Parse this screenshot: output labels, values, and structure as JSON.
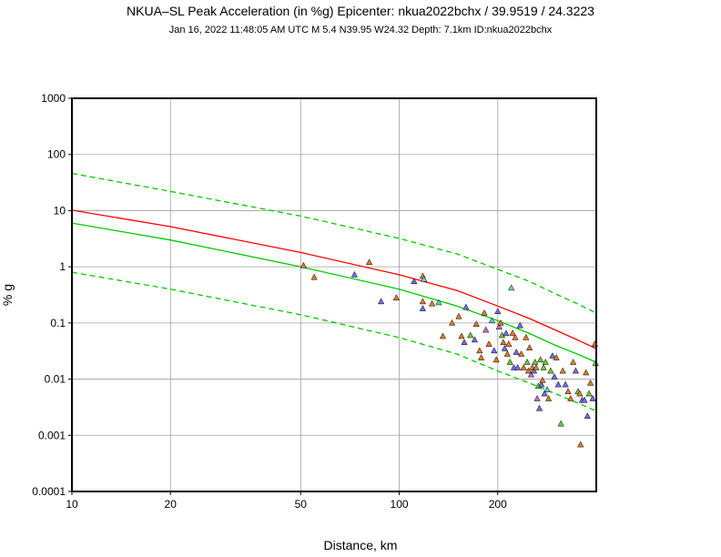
{
  "chart_data": {
    "type": "scatter",
    "title": "NKUA–SL Peak Acceleration (in %g) Epicenter: nkua2022bchx / 39.9519 / 24.3223",
    "subtitle": "Jan 16, 2022 11:48:05 AM UTC   M 5.4   N39.95 W24.32   Depth: 7.1km   ID:nkua2022bchx",
    "xlabel": "Distance, km",
    "ylabel": "% g",
    "xscale": "log",
    "yscale": "log",
    "xlim": [
      10,
      400
    ],
    "ylim": [
      0.0001,
      1000
    ],
    "grid": true,
    "x_tick_labels": [
      {
        "value": 10,
        "label": "10"
      },
      {
        "value": 20,
        "label": "20"
      },
      {
        "value": 50,
        "label": "50"
      },
      {
        "value": 100,
        "label": "100"
      },
      {
        "value": 200,
        "label": "200"
      }
    ],
    "y_tick_labels": [
      {
        "value": 1000,
        "label": "1000"
      },
      {
        "value": 100,
        "label": "100"
      },
      {
        "value": 10,
        "label": "10"
      },
      {
        "value": 1,
        "label": "1"
      },
      {
        "value": 0.1,
        "label": "0.1"
      },
      {
        "value": 0.01,
        "label": "0.01"
      },
      {
        "value": 0.001,
        "label": "0.001"
      },
      {
        "value": 0.0001,
        "label": "0.0001"
      }
    ],
    "series": [
      {
        "name": "red-curve",
        "style": "solid",
        "color": "#ff0000",
        "x": [
          10,
          20,
          50,
          100,
          150,
          200,
          250,
          300,
          350,
          400
        ],
        "y": [
          10.2,
          5.2,
          1.8,
          0.72,
          0.38,
          0.2,
          0.12,
          0.075,
          0.05,
          0.035
        ]
      },
      {
        "name": "green-median",
        "style": "solid",
        "color": "#00cc00",
        "x": [
          10,
          20,
          50,
          100,
          150,
          200,
          250,
          300,
          350,
          400
        ],
        "y": [
          6.0,
          3.0,
          1.0,
          0.4,
          0.2,
          0.11,
          0.065,
          0.04,
          0.028,
          0.02
        ]
      },
      {
        "name": "green-upper",
        "style": "dashed",
        "color": "#00cc00",
        "x": [
          10,
          20,
          50,
          100,
          150,
          200,
          250,
          300,
          350,
          400
        ],
        "y": [
          46,
          22,
          8,
          3.2,
          1.7,
          0.9,
          0.55,
          0.33,
          0.22,
          0.15
        ]
      },
      {
        "name": "green-lower",
        "style": "dashed",
        "color": "#00cc00",
        "x": [
          10,
          20,
          50,
          100,
          150,
          200,
          250,
          300,
          350,
          400
        ],
        "y": [
          0.8,
          0.4,
          0.14,
          0.055,
          0.028,
          0.014,
          0.0085,
          0.0055,
          0.0038,
          0.0027
        ]
      }
    ],
    "points": [
      {
        "x": 51,
        "y": 1.05,
        "color": "#e07a2a"
      },
      {
        "x": 55,
        "y": 0.65,
        "color": "#e07a2a"
      },
      {
        "x": 73,
        "y": 0.72,
        "color": "#6e6ee6"
      },
      {
        "x": 81,
        "y": 1.2,
        "color": "#e07a2a"
      },
      {
        "x": 88,
        "y": 0.24,
        "color": "#6e6ee6"
      },
      {
        "x": 98,
        "y": 0.28,
        "color": "#e07a2a"
      },
      {
        "x": 111,
        "y": 0.55,
        "color": "#6e6ee6"
      },
      {
        "x": 118,
        "y": 0.68,
        "color": "#e07a2a"
      },
      {
        "x": 119,
        "y": 0.6,
        "color": "#66cccc"
      },
      {
        "x": 118,
        "y": 0.24,
        "color": "#e07a2a"
      },
      {
        "x": 118,
        "y": 0.18,
        "color": "#6e6ee6"
      },
      {
        "x": 126,
        "y": 0.22,
        "color": "#e07a2a"
      },
      {
        "x": 132,
        "y": 0.23,
        "color": "#66cccc"
      },
      {
        "x": 145,
        "y": 0.1,
        "color": "#e07a2a"
      },
      {
        "x": 136,
        "y": 0.058,
        "color": "#e07a2a"
      },
      {
        "x": 152,
        "y": 0.13,
        "color": "#e07a2a"
      },
      {
        "x": 155,
        "y": 0.058,
        "color": "#e07a2a"
      },
      {
        "x": 158,
        "y": 0.045,
        "color": "#6e6ee6"
      },
      {
        "x": 160,
        "y": 0.19,
        "color": "#6e6ee6"
      },
      {
        "x": 165,
        "y": 0.06,
        "color": "#66cc33"
      },
      {
        "x": 170,
        "y": 0.05,
        "color": "#6e6ee6"
      },
      {
        "x": 172,
        "y": 0.095,
        "color": "#e07a2a"
      },
      {
        "x": 176,
        "y": 0.032,
        "color": "#e07a2a"
      },
      {
        "x": 178,
        "y": 0.024,
        "color": "#e07a2a"
      },
      {
        "x": 182,
        "y": 0.15,
        "color": "#e07a2a"
      },
      {
        "x": 184,
        "y": 0.075,
        "color": "#cc66cc"
      },
      {
        "x": 188,
        "y": 0.042,
        "color": "#e07a2a"
      },
      {
        "x": 192,
        "y": 0.11,
        "color": "#66cccc"
      },
      {
        "x": 195,
        "y": 0.032,
        "color": "#6e6ee6"
      },
      {
        "x": 198,
        "y": 0.022,
        "color": "#e07a2a"
      },
      {
        "x": 200,
        "y": 0.16,
        "color": "#6e6ee6"
      },
      {
        "x": 202,
        "y": 0.085,
        "color": "#cc66cc"
      },
      {
        "x": 204,
        "y": 0.1,
        "color": "#e07a2a"
      },
      {
        "x": 206,
        "y": 0.06,
        "color": "#66cc33"
      },
      {
        "x": 208,
        "y": 0.045,
        "color": "#e07a2a"
      },
      {
        "x": 210,
        "y": 0.035,
        "color": "#6e6ee6"
      },
      {
        "x": 212,
        "y": 0.065,
        "color": "#6e6ee6"
      },
      {
        "x": 214,
        "y": 0.028,
        "color": "#e07a2a"
      },
      {
        "x": 216,
        "y": 0.042,
        "color": "#e07a2a"
      },
      {
        "x": 218,
        "y": 0.02,
        "color": "#66cc33"
      },
      {
        "x": 220,
        "y": 0.42,
        "color": "#66cccc"
      },
      {
        "x": 222,
        "y": 0.066,
        "color": "#e07a2a"
      },
      {
        "x": 224,
        "y": 0.016,
        "color": "#6e6ee6"
      },
      {
        "x": 226,
        "y": 0.055,
        "color": "#e07a2a"
      },
      {
        "x": 228,
        "y": 0.03,
        "color": "#6e6ee6"
      },
      {
        "x": 230,
        "y": 0.016,
        "color": "#6e6ee6"
      },
      {
        "x": 234,
        "y": 0.09,
        "color": "#6e6ee6"
      },
      {
        "x": 236,
        "y": 0.028,
        "color": "#e07a2a"
      },
      {
        "x": 240,
        "y": 0.016,
        "color": "#e07a2a"
      },
      {
        "x": 244,
        "y": 0.055,
        "color": "#e07a2a"
      },
      {
        "x": 246,
        "y": 0.02,
        "color": "#66cc33"
      },
      {
        "x": 248,
        "y": 0.014,
        "color": "#e07a2a"
      },
      {
        "x": 250,
        "y": 0.036,
        "color": "#e07a2a"
      },
      {
        "x": 253,
        "y": 0.012,
        "color": "#cc66cc"
      },
      {
        "x": 255,
        "y": 0.016,
        "color": "#e07a2a"
      },
      {
        "x": 258,
        "y": 0.014,
        "color": "#6e6ee6"
      },
      {
        "x": 260,
        "y": 0.02,
        "color": "#66cc33"
      },
      {
        "x": 262,
        "y": 0.016,
        "color": "#e07a2a"
      },
      {
        "x": 264,
        "y": 0.0045,
        "color": "#cc66cc"
      },
      {
        "x": 266,
        "y": 0.0075,
        "color": "#66cc33"
      },
      {
        "x": 268,
        "y": 0.003,
        "color": "#6e6ee6"
      },
      {
        "x": 270,
        "y": 0.022,
        "color": "#66cc33"
      },
      {
        "x": 272,
        "y": 0.008,
        "color": "#6e6ee6"
      },
      {
        "x": 274,
        "y": 0.0095,
        "color": "#e07a2a"
      },
      {
        "x": 276,
        "y": 0.016,
        "color": "#66cc33"
      },
      {
        "x": 278,
        "y": 0.0055,
        "color": "#6e6ee6"
      },
      {
        "x": 280,
        "y": 0.02,
        "color": "#66cc33"
      },
      {
        "x": 283,
        "y": 0.0065,
        "color": "#66cccc"
      },
      {
        "x": 286,
        "y": 0.0045,
        "color": "#e07a2a"
      },
      {
        "x": 290,
        "y": 0.014,
        "color": "#66cc33"
      },
      {
        "x": 294,
        "y": 0.026,
        "color": "#6e6ee6"
      },
      {
        "x": 298,
        "y": 0.011,
        "color": "#6e6ee6"
      },
      {
        "x": 302,
        "y": 0.024,
        "color": "#e07a2a"
      },
      {
        "x": 306,
        "y": 0.008,
        "color": "#6e6ee6"
      },
      {
        "x": 312,
        "y": 0.0016,
        "color": "#66cc33"
      },
      {
        "x": 316,
        "y": 0.014,
        "color": "#e07a2a"
      },
      {
        "x": 322,
        "y": 0.008,
        "color": "#6e6ee6"
      },
      {
        "x": 328,
        "y": 0.006,
        "color": "#e07a2a"
      },
      {
        "x": 334,
        "y": 0.0045,
        "color": "#e07a2a"
      },
      {
        "x": 340,
        "y": 0.02,
        "color": "#e07a2a"
      },
      {
        "x": 346,
        "y": 0.014,
        "color": "#6e6ee6"
      },
      {
        "x": 352,
        "y": 0.006,
        "color": "#66cc33"
      },
      {
        "x": 356,
        "y": 0.0055,
        "color": "#e07a2a"
      },
      {
        "x": 358,
        "y": 0.00068,
        "color": "#e07a2a"
      },
      {
        "x": 362,
        "y": 0.0042,
        "color": "#6e6ee6"
      },
      {
        "x": 368,
        "y": 0.0042,
        "color": "#6e6ee6"
      },
      {
        "x": 372,
        "y": 0.013,
        "color": "#e07a2a"
      },
      {
        "x": 376,
        "y": 0.0022,
        "color": "#6e6ee6"
      },
      {
        "x": 380,
        "y": 0.0055,
        "color": "#66cc33"
      },
      {
        "x": 384,
        "y": 0.0085,
        "color": "#e07a2a"
      },
      {
        "x": 390,
        "y": 0.0045,
        "color": "#6e6ee6"
      },
      {
        "x": 396,
        "y": 0.042,
        "color": "#e07a2a"
      },
      {
        "x": 398,
        "y": 0.019,
        "color": "#66cc33"
      }
    ]
  }
}
